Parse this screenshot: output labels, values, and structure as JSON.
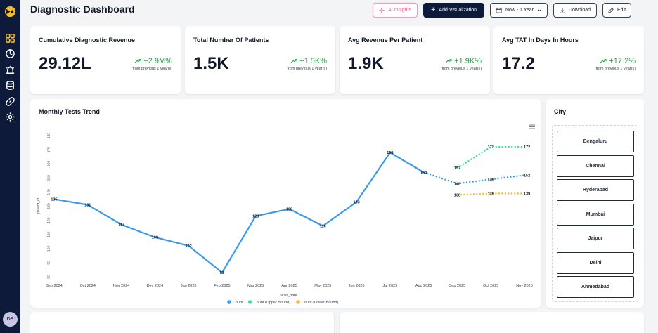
{
  "header": {
    "title": "Diagnostic Dashboard",
    "ai_label": "AI Insights",
    "add_label": "Add Visualization",
    "range_label": "Now - 1 Year",
    "download_label": "Download",
    "edit_label": "Edit"
  },
  "user": {
    "initials": "DS"
  },
  "kpis": [
    {
      "title": "Cumulative Diagnostic Revenue",
      "value": "29.12L",
      "delta": "+2.9M%",
      "sub": "from previous 1 year(s)"
    },
    {
      "title": "Total Number Of Patients",
      "value": "1.5K",
      "delta": "+1.5K%",
      "sub": "from previous 1 year(s)"
    },
    {
      "title": "Avg Revenue Per Patient",
      "value": "1.9K",
      "delta": "+1.9K%",
      "sub": "from previous 1 year(s)"
    },
    {
      "title": "Avg TAT In Days In Hours",
      "value": "17.2",
      "delta": "+17.2%",
      "sub": "from previous 1 year(s)"
    }
  ],
  "city": {
    "title": "City",
    "items": [
      "Bengaluru",
      "Chennai",
      "Hyderabad",
      "Mumbai",
      "Jaipur",
      "Delhi",
      "Ahmedabad"
    ]
  },
  "colors": {
    "count": "#3b9be8",
    "upper": "#2ee0a8",
    "lower": "#f5b82e",
    "positive": "#22a447",
    "brand": "#0e1a3a"
  },
  "chart_data": {
    "type": "line",
    "title": "Monthly Tests Trend",
    "xlabel": "visit_date",
    "ylabel": "patient_id",
    "ylim": [
      80,
      180
    ],
    "yticks": [
      80,
      90,
      100,
      110,
      120,
      130,
      140,
      150,
      160,
      170,
      180
    ],
    "categories": [
      "Sep 2024",
      "Oct 2024",
      "Nov 2024",
      "Dec 2024",
      "Jan 2025",
      "Feb 2025",
      "Mar 2025",
      "Apr 2025",
      "May 2025",
      "Jun 2025",
      "Jul 2025",
      "Aug 2025",
      "Sep 2025",
      "Oct 2025",
      "Nov 2025"
    ],
    "series": [
      {
        "name": "Count",
        "values": [
          135,
          131,
          117,
          108,
          102,
          83,
          123,
          128,
          116,
          133,
          168,
          154,
          146,
          149,
          152
        ]
      },
      {
        "name": "Count (Upper Bound)",
        "values": [
          null,
          null,
          null,
          null,
          null,
          null,
          null,
          null,
          null,
          null,
          null,
          null,
          157,
          172,
          172
        ]
      },
      {
        "name": "Count (Lower Bound)",
        "values": [
          null,
          null,
          null,
          null,
          null,
          null,
          null,
          null,
          null,
          null,
          null,
          null,
          138,
          139,
          139
        ]
      }
    ],
    "forecast_start_index": 11,
    "legend": [
      "Count",
      "Count (Upper Bound)",
      "Count (Lower Bound)"
    ],
    "legend_position": "bottom-center"
  }
}
